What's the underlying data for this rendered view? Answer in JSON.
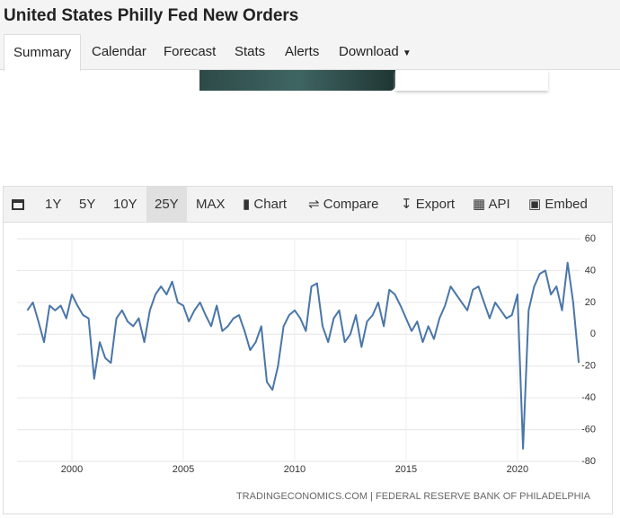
{
  "header": {
    "title": "United States Philly Fed New Orders"
  },
  "tabs": [
    "Summary",
    "Calendar",
    "Forecast",
    "Stats",
    "Alerts",
    "Download"
  ],
  "toolbar": {
    "ranges": [
      "1Y",
      "5Y",
      "10Y",
      "25Y",
      "MAX"
    ],
    "tools": [
      "Chart",
      "Compare",
      "Export",
      "API",
      "Embed"
    ]
  },
  "chart_data": {
    "type": "line",
    "x": [
      1998,
      1998.25,
      1998.5,
      1998.75,
      1999,
      1999.25,
      1999.5,
      1999.75,
      2000,
      2000.25,
      2000.5,
      2000.75,
      2001,
      2001.25,
      2001.5,
      2001.75,
      2002,
      2002.25,
      2002.5,
      2002.75,
      2003,
      2003.25,
      2003.5,
      2003.75,
      2004,
      2004.25,
      2004.5,
      2004.75,
      2005,
      2005.25,
      2005.5,
      2005.75,
      2006,
      2006.25,
      2006.5,
      2006.75,
      2007,
      2007.25,
      2007.5,
      2007.75,
      2008,
      2008.25,
      2008.5,
      2008.75,
      2009,
      2009.25,
      2009.5,
      2009.75,
      2010,
      2010.25,
      2010.5,
      2010.75,
      2011,
      2011.25,
      2011.5,
      2011.75,
      2012,
      2012.25,
      2012.5,
      2012.75,
      2013,
      2013.25,
      2013.5,
      2013.75,
      2014,
      2014.25,
      2014.5,
      2014.75,
      2015,
      2015.25,
      2015.5,
      2015.75,
      2016,
      2016.25,
      2016.5,
      2016.75,
      2017,
      2017.25,
      2017.5,
      2017.75,
      2018,
      2018.25,
      2018.5,
      2018.75,
      2019,
      2019.25,
      2019.5,
      2019.75,
      2020,
      2020.25,
      2020.5,
      2020.75,
      2021,
      2021.25,
      2021.5,
      2021.75,
      2022,
      2022.25,
      2022.5,
      2022.75
    ],
    "series": [
      {
        "name": "Philly Fed New Orders",
        "color": "#4a76a8",
        "values": [
          15,
          20,
          8,
          -5,
          18,
          15,
          18,
          10,
          25,
          18,
          12,
          10,
          -28,
          -5,
          -15,
          -18,
          10,
          15,
          8,
          5,
          10,
          -5,
          15,
          25,
          30,
          25,
          33,
          20,
          18,
          8,
          15,
          20,
          12,
          5,
          18,
          2,
          5,
          10,
          12,
          2,
          -10,
          -5,
          5,
          -30,
          -35,
          -20,
          5,
          12,
          15,
          10,
          2,
          30,
          32,
          5,
          -5,
          10,
          15,
          -5,
          0,
          12,
          -8,
          8,
          12,
          20,
          5,
          28,
          25,
          18,
          10,
          2,
          8,
          -5,
          5,
          -3,
          10,
          18,
          30,
          25,
          20,
          15,
          28,
          30,
          20,
          10,
          20,
          15,
          10,
          12,
          25,
          -72,
          15,
          30,
          38,
          40,
          25,
          30,
          15,
          45,
          20,
          -18
        ]
      }
    ],
    "xlim": [
      1997.54,
      2023.27
    ],
    "xticks": [
      2000,
      2005,
      2010,
      2015,
      2020
    ],
    "ylim": [
      -80,
      60
    ],
    "yticks": [
      60,
      40,
      20,
      0,
      -20,
      -40,
      -60,
      -80
    ],
    "grid": true,
    "source": "TRADINGECONOMICS.COM | FEDERAL RESERVE BANK OF PHILADELPHIA"
  }
}
